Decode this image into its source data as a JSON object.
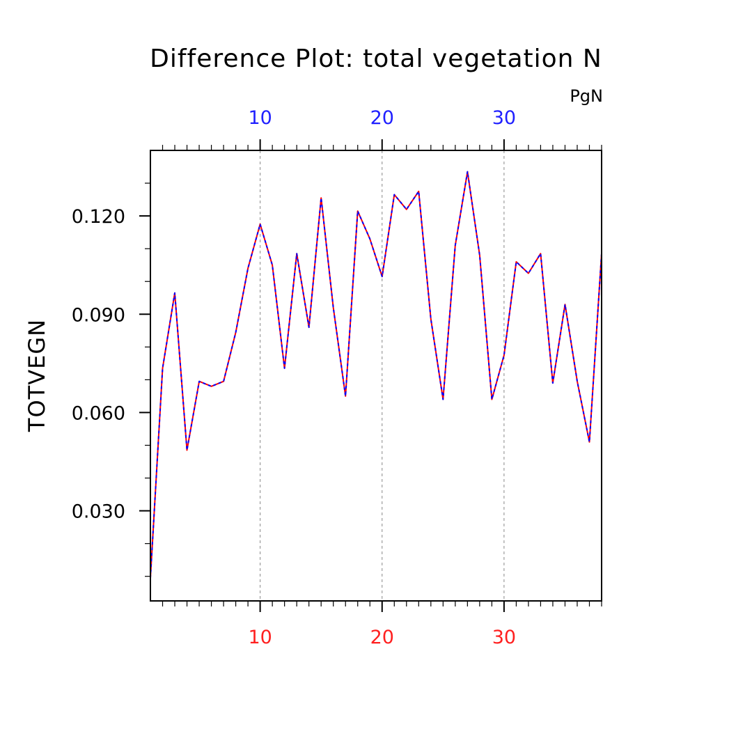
{
  "chart_data": {
    "type": "line",
    "title": "Difference Plot: total vegetation N",
    "units": "PgN",
    "ylabel": "TOTVEGN",
    "xlabel": "",
    "xlim": [
      1,
      38
    ],
    "ylim": [
      0.0025,
      0.14
    ],
    "x_ticks": [
      10,
      20,
      30
    ],
    "x_tick_labels": [
      "10",
      "20",
      "30"
    ],
    "y_ticks": [
      0.03,
      0.06,
      0.09,
      0.12
    ],
    "y_tick_labels": [
      "0.030",
      "0.060",
      "0.090",
      "0.120"
    ],
    "grid": "vertical dashed at major x ticks",
    "bottom_axis_color": "#ff2020",
    "top_axis_color": "#2020ff",
    "series": [
      {
        "color": "#ff0000",
        "x": [
          1,
          2,
          3,
          4,
          5,
          6,
          7,
          8,
          9,
          10,
          11,
          12,
          13,
          14,
          15,
          16,
          17,
          18,
          19,
          20,
          21,
          22,
          23,
          24,
          25,
          26,
          27,
          28,
          29,
          30,
          31,
          32,
          33,
          34,
          35,
          36,
          37,
          38
        ],
        "values": [
          0.0095,
          0.0735,
          0.0965,
          0.0485,
          0.0695,
          0.068,
          0.0695,
          0.0845,
          0.104,
          0.1175,
          0.105,
          0.0735,
          0.1085,
          0.086,
          0.1255,
          0.092,
          0.065,
          0.1215,
          0.113,
          0.1015,
          0.1265,
          0.122,
          0.1275,
          0.0885,
          0.064,
          0.111,
          0.1335,
          0.108,
          0.064,
          0.0775,
          0.106,
          0.1025,
          0.1085,
          0.069,
          0.093,
          0.0695,
          0.051,
          0.1085
        ]
      },
      {
        "color": "#0000ff",
        "x": [
          1,
          2,
          3,
          4,
          5,
          6,
          7,
          8,
          9,
          10,
          11,
          12,
          13,
          14,
          15,
          16,
          17,
          18,
          19,
          20,
          21,
          22,
          23,
          24,
          25,
          26,
          27,
          28,
          29,
          30,
          31,
          32,
          33,
          34,
          35,
          36,
          37,
          38
        ],
        "values": [
          0.0095,
          0.0735,
          0.0965,
          0.0485,
          0.0695,
          0.068,
          0.0695,
          0.0845,
          0.104,
          0.1175,
          0.105,
          0.0735,
          0.1085,
          0.086,
          0.1255,
          0.092,
          0.065,
          0.1215,
          0.113,
          0.1015,
          0.1265,
          0.122,
          0.1275,
          0.0885,
          0.064,
          0.111,
          0.1335,
          0.108,
          0.064,
          0.0775,
          0.106,
          0.1025,
          0.1085,
          0.069,
          0.093,
          0.0695,
          0.051,
          0.1085
        ]
      }
    ]
  }
}
